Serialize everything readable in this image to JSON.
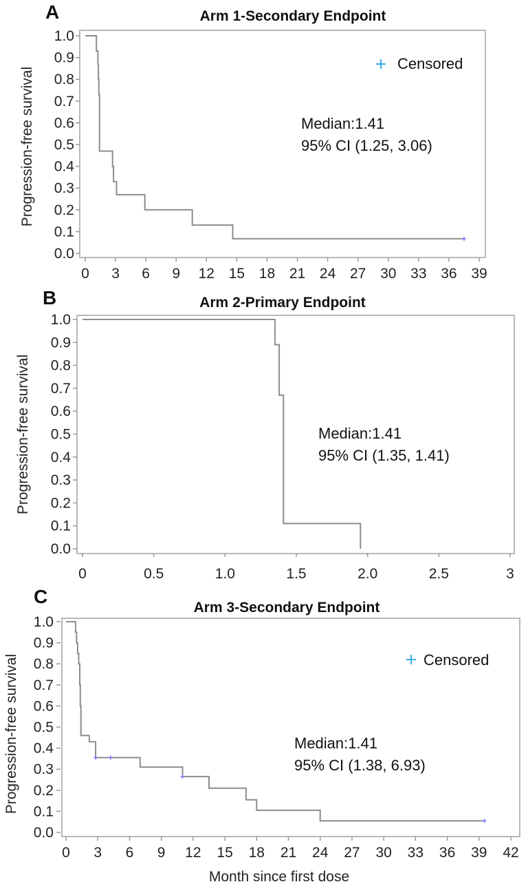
{
  "figure": {
    "xlabel": "Month since first dose"
  },
  "chart_data": [
    {
      "type": "line",
      "panel": "A",
      "title": "Arm 1-Secondary Endpoint",
      "xlabel": "",
      "ylabel": "Progression-free survival",
      "xlim": [
        0,
        39
      ],
      "ylim": [
        0,
        1.0
      ],
      "x_ticks": [
        "0",
        "3",
        "6",
        "9",
        "12",
        "15",
        "18",
        "21",
        "24",
        "27",
        "30",
        "33",
        "36",
        "39"
      ],
      "y_ticks": [
        "0.0",
        "0.1",
        "0.2",
        "0.3",
        "0.4",
        "0.5",
        "0.6",
        "0.7",
        "0.8",
        "0.9",
        "1.0"
      ],
      "legend": {
        "label": "Censored",
        "position": "top-right",
        "color": "#39a9e6"
      },
      "annotation": {
        "median": "Median:1.41",
        "ci": "95% CI (1.25, 3.06)"
      },
      "series": [
        {
          "step": [
            [
              0,
              1.0
            ],
            [
              1.1,
              1.0
            ],
            [
              1.1,
              0.93
            ],
            [
              1.25,
              0.93
            ],
            [
              1.25,
              0.87
            ],
            [
              1.3,
              0.87
            ],
            [
              1.3,
              0.8
            ],
            [
              1.35,
              0.8
            ],
            [
              1.35,
              0.73
            ],
            [
              1.41,
              0.73
            ],
            [
              1.41,
              0.47
            ],
            [
              2.7,
              0.47
            ],
            [
              2.7,
              0.4
            ],
            [
              2.8,
              0.4
            ],
            [
              2.8,
              0.33
            ],
            [
              3.1,
              0.33
            ],
            [
              3.1,
              0.27
            ],
            [
              5.9,
              0.27
            ],
            [
              5.9,
              0.2
            ],
            [
              10.6,
              0.2
            ],
            [
              10.6,
              0.13
            ],
            [
              14.6,
              0.13
            ],
            [
              14.6,
              0.067
            ],
            [
              37.5,
              0.067
            ]
          ],
          "censored": [
            [
              37.5,
              0.067
            ]
          ]
        }
      ]
    },
    {
      "type": "line",
      "panel": "B",
      "title": "Arm 2-Primary Endpoint",
      "xlabel": "",
      "ylabel": "Progression-free survival",
      "xlim": [
        0,
        3
      ],
      "ylim": [
        0,
        1.0
      ],
      "x_ticks": [
        "0",
        "0.5",
        "1.0",
        "1.5",
        "2.0",
        "2.5",
        "3"
      ],
      "y_ticks": [
        "0.0",
        "0.1",
        "0.2",
        "0.3",
        "0.4",
        "0.5",
        "0.6",
        "0.7",
        "0.8",
        "0.9",
        "1.0"
      ],
      "annotation": {
        "median": "Median:1.41",
        "ci": "95% CI (1.35, 1.41)"
      },
      "series": [
        {
          "step": [
            [
              0,
              1.0
            ],
            [
              1.35,
              1.0
            ],
            [
              1.35,
              0.89
            ],
            [
              1.38,
              0.89
            ],
            [
              1.38,
              0.67
            ],
            [
              1.41,
              0.67
            ],
            [
              1.41,
              0.11
            ],
            [
              1.95,
              0.11
            ],
            [
              1.95,
              0.0
            ]
          ],
          "censored": []
        }
      ]
    },
    {
      "type": "line",
      "panel": "C",
      "title": "Arm 3-Secondary Endpoint",
      "xlabel": "Month since first dose",
      "ylabel": "Progression-free survival",
      "xlim": [
        0,
        42
      ],
      "ylim": [
        0,
        1.0
      ],
      "x_ticks": [
        "0",
        "3",
        "6",
        "9",
        "12",
        "15",
        "18",
        "21",
        "24",
        "27",
        "30",
        "33",
        "36",
        "39",
        "42"
      ],
      "y_ticks": [
        "0.0",
        "0.1",
        "0.2",
        "0.3",
        "0.4",
        "0.5",
        "0.6",
        "0.7",
        "0.8",
        "0.9",
        "1.0"
      ],
      "legend": {
        "label": "Censored",
        "position": "top-right",
        "color": "#39a9e6"
      },
      "annotation": {
        "median": "Median:1.41",
        "ci": "95% CI (1.38, 6.93)"
      },
      "series": [
        {
          "step": [
            [
              0,
              1.0
            ],
            [
              0.9,
              1.0
            ],
            [
              0.9,
              0.95
            ],
            [
              1.0,
              0.95
            ],
            [
              1.0,
              0.9
            ],
            [
              1.1,
              0.9
            ],
            [
              1.1,
              0.85
            ],
            [
              1.2,
              0.85
            ],
            [
              1.2,
              0.8
            ],
            [
              1.3,
              0.8
            ],
            [
              1.3,
              0.7
            ],
            [
              1.35,
              0.7
            ],
            [
              1.35,
              0.6
            ],
            [
              1.41,
              0.6
            ],
            [
              1.41,
              0.46
            ],
            [
              2.2,
              0.46
            ],
            [
              2.2,
              0.43
            ],
            [
              2.8,
              0.43
            ],
            [
              2.8,
              0.355
            ],
            [
              7.0,
              0.355
            ],
            [
              7.0,
              0.31
            ],
            [
              11.0,
              0.31
            ],
            [
              11.0,
              0.265
            ],
            [
              13.5,
              0.265
            ],
            [
              13.5,
              0.21
            ],
            [
              17.0,
              0.21
            ],
            [
              17.0,
              0.155
            ],
            [
              18.0,
              0.155
            ],
            [
              18.0,
              0.105
            ],
            [
              24.0,
              0.105
            ],
            [
              24.0,
              0.055
            ],
            [
              39.5,
              0.055
            ]
          ],
          "censored": [
            [
              2.8,
              0.355
            ],
            [
              4.2,
              0.355
            ],
            [
              11.0,
              0.265
            ],
            [
              39.5,
              0.055
            ]
          ]
        }
      ]
    }
  ]
}
